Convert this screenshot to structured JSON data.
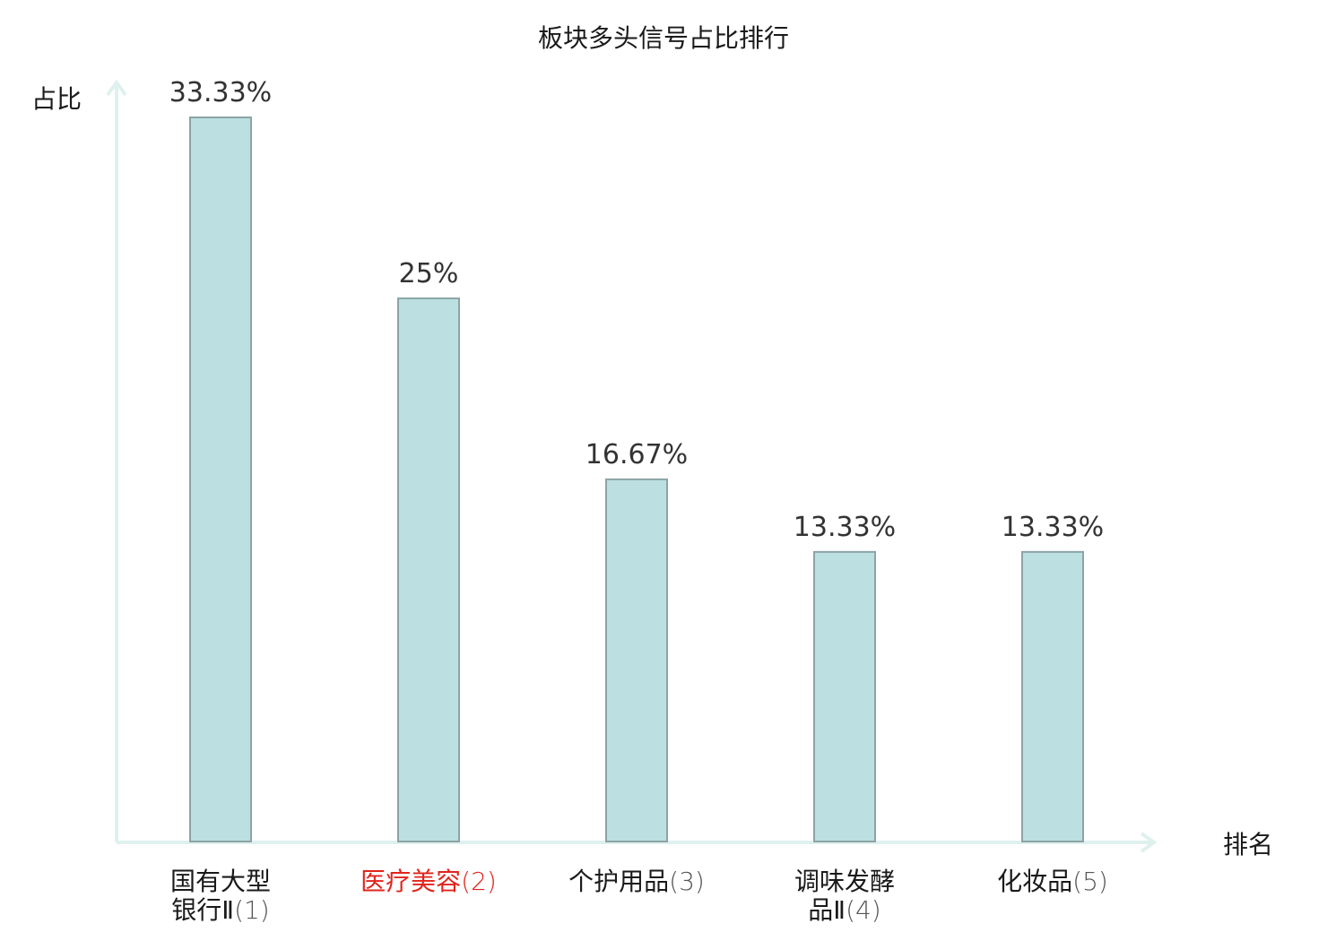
{
  "chart_data": {
    "type": "bar",
    "title": "板块多头信号占比排行",
    "ylabel": "占比",
    "xlabel": "排名",
    "ylim": [
      0,
      0.3333
    ],
    "grid": false,
    "legend": "none",
    "bar_color": "#bce0e1",
    "bar_edge_color": "#8ca4a6",
    "axis_color": "#dff1ee",
    "highlight_color": "#e0241b",
    "categories": [
      {
        "lines": [
          "国有大型",
          "银行Ⅱ"
        ],
        "rank": "(1)",
        "highlight": false
      },
      {
        "lines": [
          "医疗美容"
        ],
        "rank": "(2)",
        "highlight": true
      },
      {
        "lines": [
          "个护用品"
        ],
        "rank": "(3)",
        "highlight": false
      },
      {
        "lines": [
          "调味发酵",
          "品Ⅱ"
        ],
        "rank": "(4)",
        "highlight": false
      },
      {
        "lines": [
          "化妆品"
        ],
        "rank": "(5)",
        "highlight": false
      }
    ],
    "values": [
      33.33,
      25,
      16.67,
      13.33,
      13.33
    ],
    "value_labels": [
      "33.33%",
      "25%",
      "16.67%",
      "13.33%",
      "13.33%"
    ]
  }
}
